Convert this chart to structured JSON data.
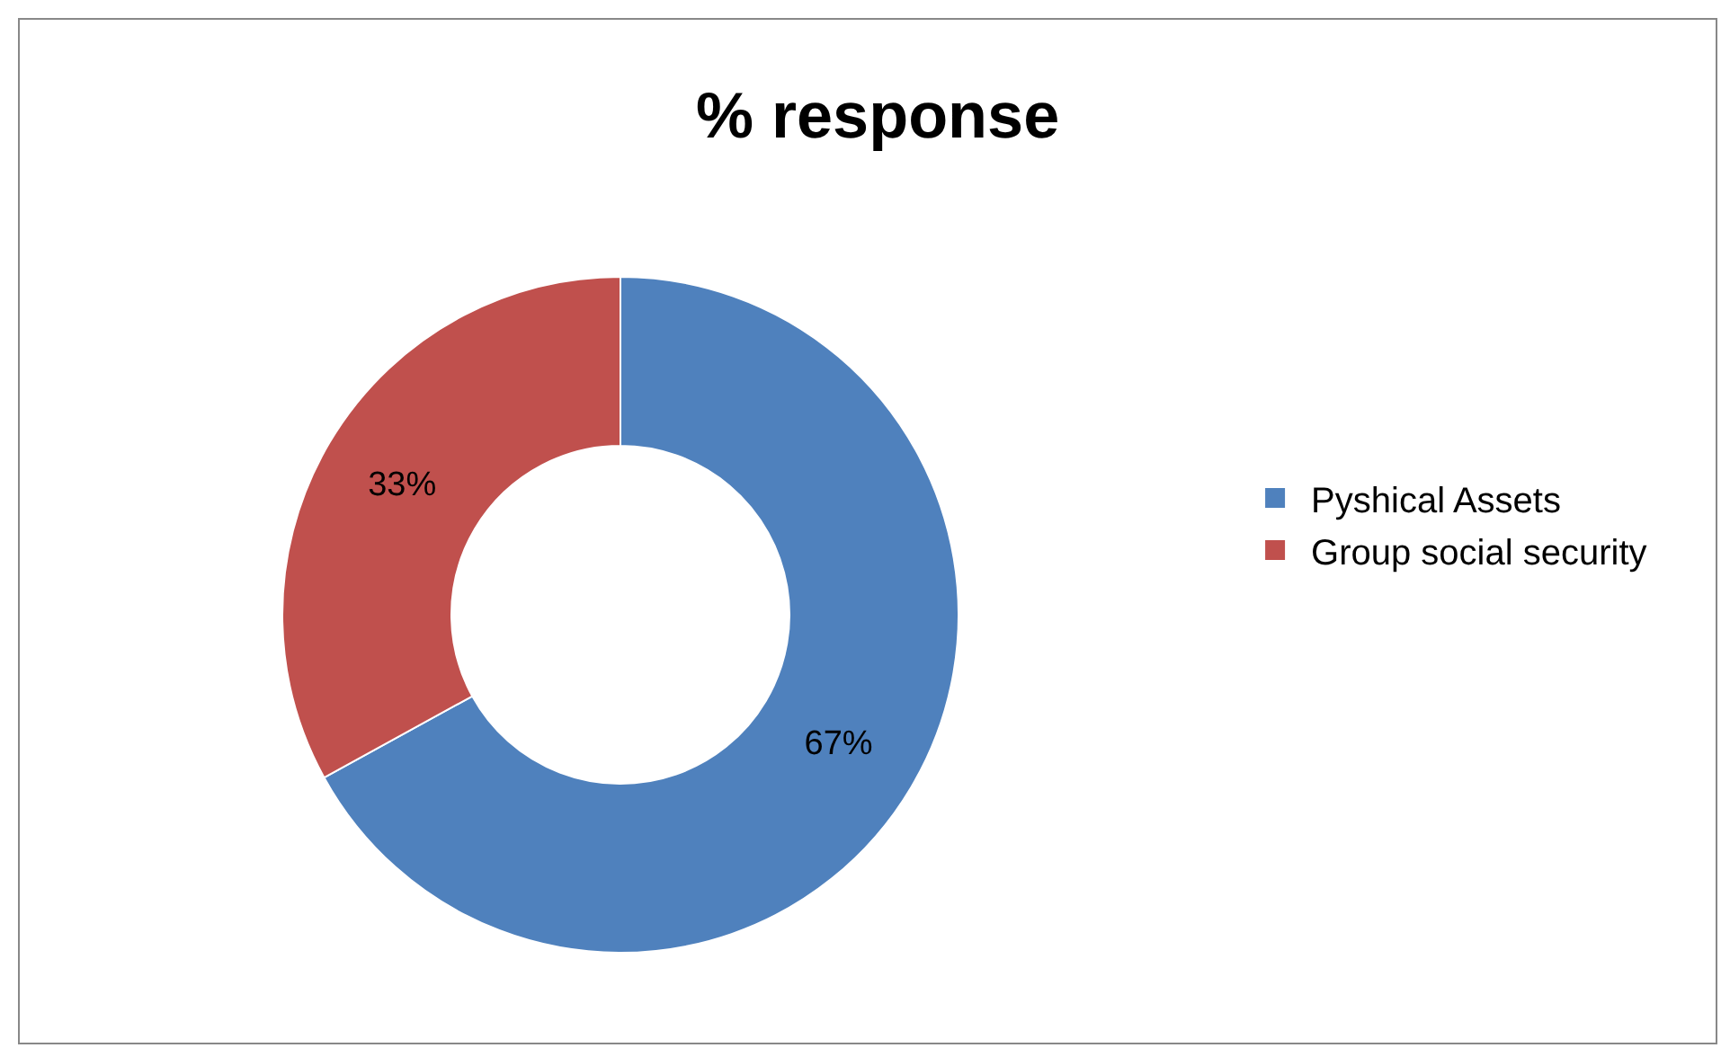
{
  "chart_data": {
    "type": "donut",
    "title": "% response",
    "categories": [
      "Pyshical Assets",
      "Group social security"
    ],
    "values": [
      67,
      33
    ],
    "value_labels": [
      "67%",
      "33%"
    ],
    "colors": [
      "#4f81bd",
      "#c0504d"
    ],
    "legend": "right"
  }
}
